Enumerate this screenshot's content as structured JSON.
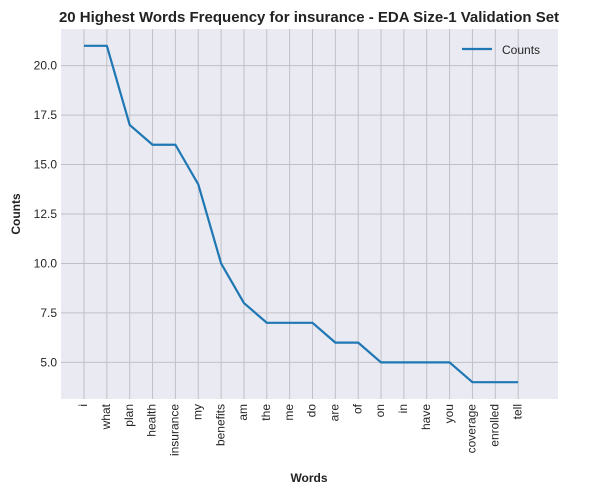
{
  "chart_data": {
    "type": "line",
    "title": "20 Highest Words Frequency for insurance - EDA Size-1 Validation Set",
    "xlabel": "Words",
    "ylabel": "Counts",
    "categories": [
      "i",
      "what",
      "plan",
      "health",
      "insurance",
      "my",
      "benefits",
      "am",
      "the",
      "me",
      "do",
      "are",
      "of",
      "on",
      "in",
      "have",
      "you",
      "coverage",
      "enrolled",
      "tell"
    ],
    "series": [
      {
        "name": "Counts",
        "values": [
          21,
          21,
          17,
          16,
          16,
          14,
          10,
          8,
          7,
          7,
          7,
          6,
          6,
          5,
          5,
          5,
          5,
          4,
          4,
          4
        ]
      }
    ],
    "ylim": [
      3.15,
      21.85
    ],
    "yticks": [
      5.0,
      7.5,
      10.0,
      12.5,
      15.0,
      17.5,
      20.0
    ],
    "ytick_labels": [
      "5.0",
      "7.5",
      "10.0",
      "12.5",
      "15.0",
      "17.5",
      "20.0"
    ],
    "grid": true,
    "legend_position": "top-right",
    "colors": {
      "line": "#1f77b4",
      "background": "#eaeaf2",
      "grid": "#c0c0c8"
    }
  }
}
